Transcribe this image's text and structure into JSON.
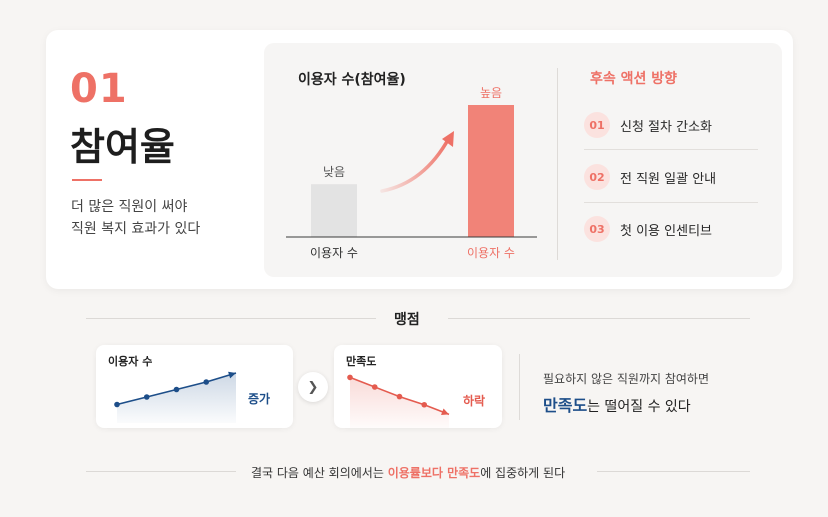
{
  "section": {
    "number": "01",
    "title": "참여율",
    "desc_line1": "더 많은 직원이 써야",
    "desc_line2": "직원 복지 효과가 있다"
  },
  "chart_data": {
    "type": "bar",
    "title": "이용자 수(참여율)",
    "categories": [
      "이용자 수",
      "이용자 수"
    ],
    "values": [
      1,
      2.5
    ],
    "value_labels": [
      "낮음",
      "높음"
    ],
    "colors": [
      "#e3e3e3",
      "#f18378"
    ],
    "annotation": "upward trend arrow from low bar to high bar"
  },
  "follow_up": {
    "title": "후속 액션 방향",
    "items": [
      {
        "num": "01",
        "label": "신청 절차 간소화"
      },
      {
        "num": "02",
        "label": "전 직원 일괄 안내"
      },
      {
        "num": "03",
        "label": "첫 이용 인센티브"
      }
    ]
  },
  "pitfall": {
    "title": "맹점",
    "card_left": {
      "title": "이용자 수",
      "tag": "증가",
      "trend": [
        0.25,
        0.4,
        0.55,
        0.7,
        0.88
      ],
      "color": "#1d4e89"
    },
    "card_right": {
      "title": "만족도",
      "tag": "하락",
      "trend": [
        0.95,
        0.75,
        0.55,
        0.38,
        0.18
      ],
      "color": "#e45b4f"
    },
    "desc_line1": "필요하지 않은 직원까지 참여하면",
    "desc_strong": "만족도",
    "desc_rest": "는 떨어질 수 있다"
  },
  "bottom": {
    "pre": "결국 다음 예산 회의에서는 ",
    "highlight": "이용률보다 만족도",
    "post": "에 집중하게 된다"
  },
  "colors": {
    "accent": "#ee7166",
    "navy": "#1d4e89",
    "background": "#f7f5f3"
  }
}
